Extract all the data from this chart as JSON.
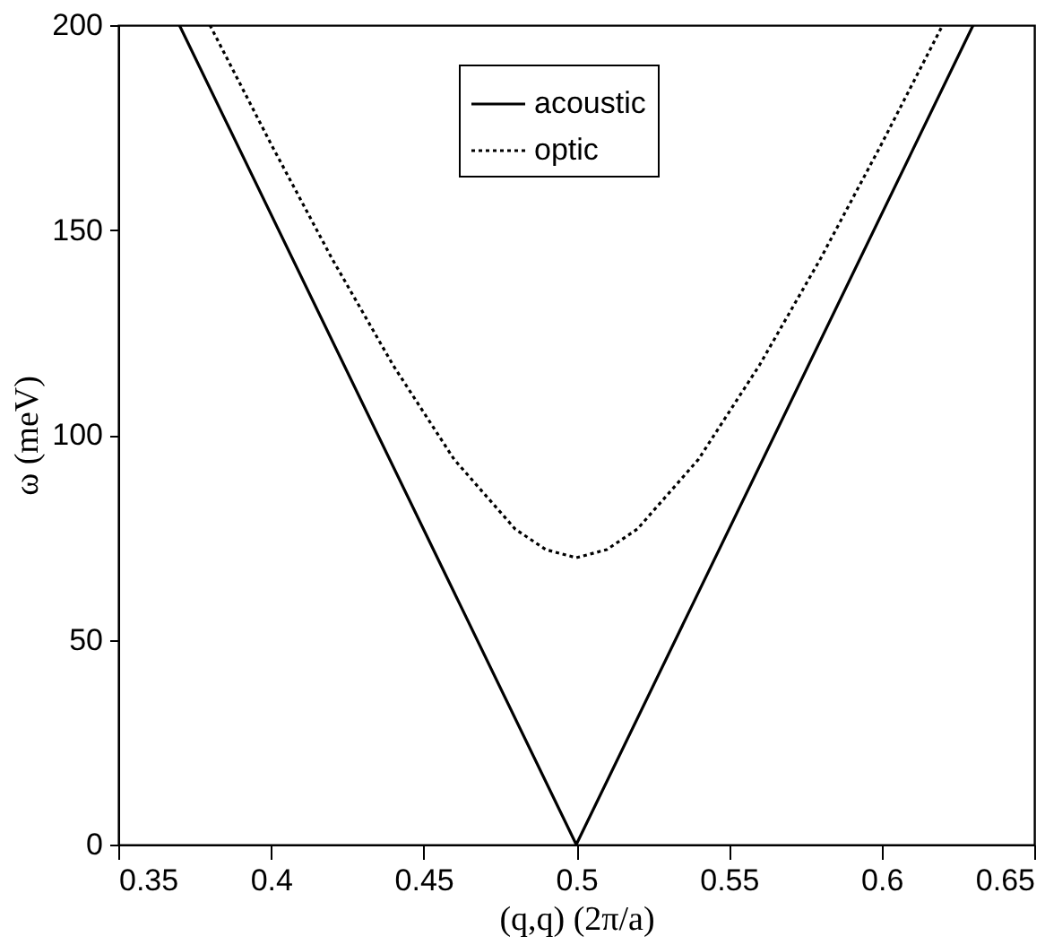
{
  "chart_data": {
    "type": "line",
    "xlabel": "(q,q) (2π/a)",
    "ylabel": "ω (meV)",
    "xlim": [
      0.35,
      0.65
    ],
    "ylim": [
      0,
      200
    ],
    "xticks": [
      0.35,
      0.4,
      0.45,
      0.5,
      0.55,
      0.6,
      0.65
    ],
    "yticks": [
      0,
      50,
      100,
      150,
      200
    ],
    "grid": false,
    "legend": "top",
    "marker": "none",
    "series": [
      {
        "name": "acoustic",
        "color": "#000000",
        "line_style": "solid",
        "x": [
          0.37,
          0.5,
          0.63
        ],
        "values": [
          200,
          0,
          200
        ]
      },
      {
        "name": "optic",
        "color": "#000000",
        "line_style": "dotted",
        "x": [
          0.38,
          0.4,
          0.42,
          0.44,
          0.46,
          0.48,
          0.49,
          0.5,
          0.51,
          0.52,
          0.54,
          0.56,
          0.58,
          0.6,
          0.62
        ],
        "values": [
          200,
          171,
          143,
          117,
          94,
          77,
          72,
          70,
          72,
          77,
          94,
          117,
          143,
          171,
          200
        ]
      }
    ]
  }
}
